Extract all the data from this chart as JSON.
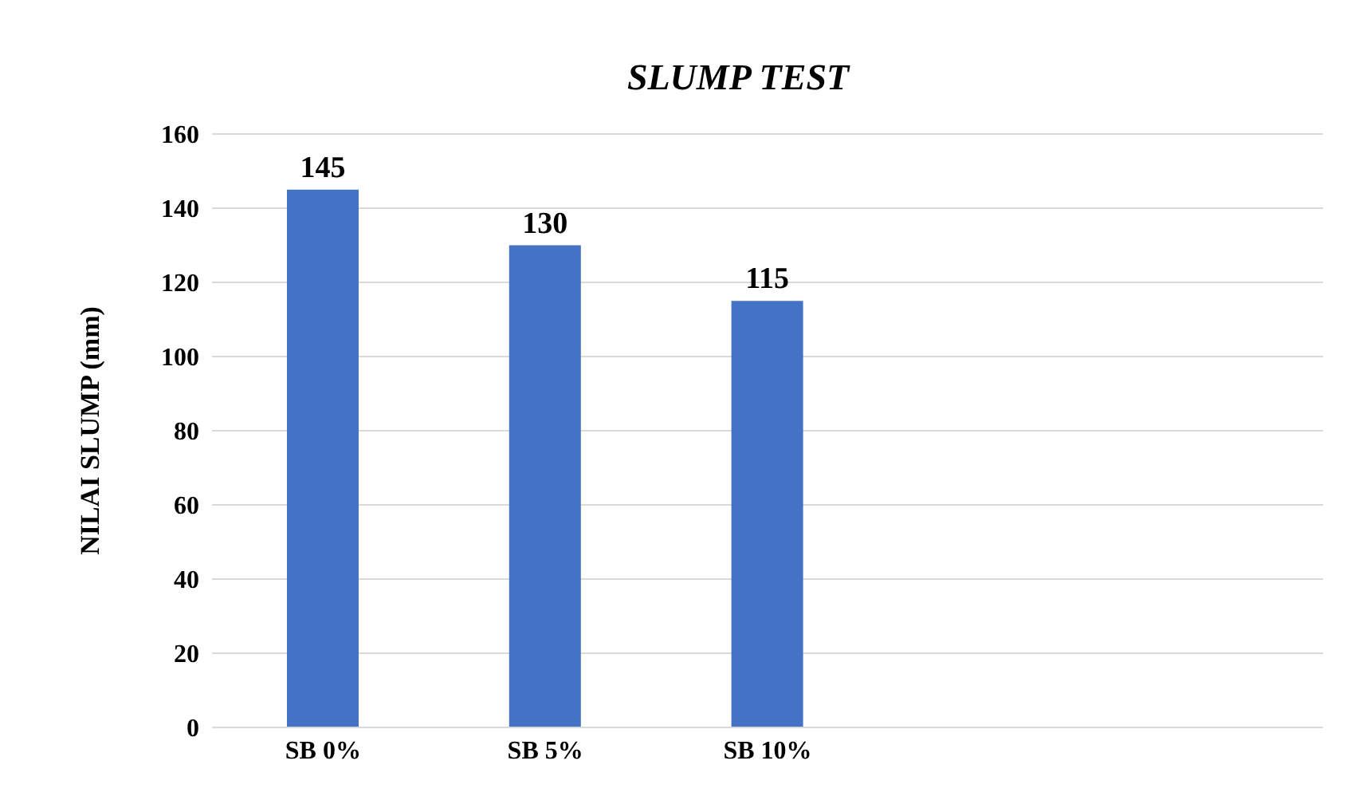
{
  "chart_data": {
    "type": "bar",
    "title": "SLUMP TEST",
    "ylabel": "NILAI SLUMP (mm)",
    "categories": [
      "SB 0%",
      "SB 5%",
      "SB 10%",
      null,
      null
    ],
    "values": [
      145,
      130,
      115,
      null,
      null
    ],
    "color": "#4472c4",
    "ylim": [
      0,
      160
    ],
    "yticks": [
      0,
      20,
      40,
      60,
      80,
      100,
      120,
      140,
      160
    ],
    "grid": "y",
    "data_labels": true
  }
}
